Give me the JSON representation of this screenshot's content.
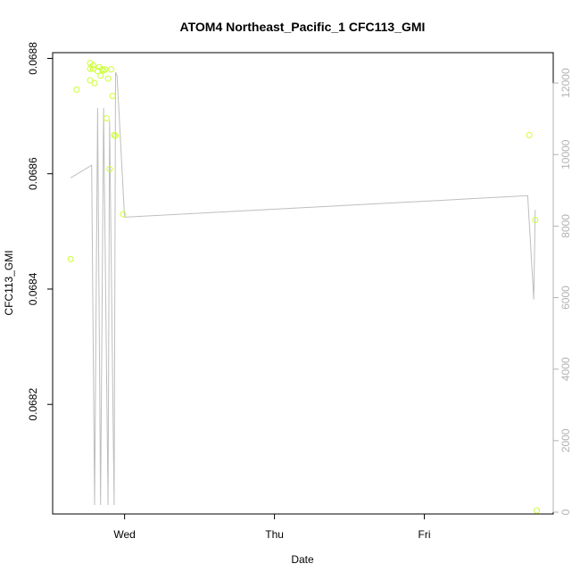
{
  "chart_data": {
    "type": "scatter",
    "title": "ATOM4 Northeast_Pacific_1 CFC113_GMI",
    "xlabel": "Date",
    "ylabel": "CFC113_GMI",
    "x_ticks": [
      {
        "label": "Wed",
        "day": 1.0
      },
      {
        "label": "Thu",
        "day": 2.0
      },
      {
        "label": "Fri",
        "day": 3.0
      }
    ],
    "xlim": [
      0.52,
      3.86
    ],
    "ylim": [
      0.06801,
      0.06881
    ],
    "y_ticks": [
      0.0682,
      0.0684,
      0.0686,
      0.0688
    ],
    "y2lim": [
      -50,
      12850
    ],
    "y2_ticks": [
      0,
      2000,
      4000,
      6000,
      8000,
      10000,
      12000
    ],
    "points_color": "#ccff33",
    "line_color": "#bebebe",
    "right_axis_color": "#b3b3b3",
    "series": [
      {
        "name": "",
        "points": [
          {
            "x": 0.64,
            "y": 0.068452
          },
          {
            "x": 0.68,
            "y": 0.068746
          },
          {
            "x": 0.77,
            "y": 0.068792
          },
          {
            "x": 0.77,
            "y": 0.068782
          },
          {
            "x": 0.77,
            "y": 0.068762
          },
          {
            "x": 0.79,
            "y": 0.068788
          },
          {
            "x": 0.79,
            "y": 0.068782
          },
          {
            "x": 0.8,
            "y": 0.068757
          },
          {
            "x": 0.82,
            "y": 0.068778
          },
          {
            "x": 0.83,
            "y": 0.068785
          },
          {
            "x": 0.84,
            "y": 0.06877
          },
          {
            "x": 0.85,
            "y": 0.068781
          },
          {
            "x": 0.86,
            "y": 0.068779
          },
          {
            "x": 0.87,
            "y": 0.068781
          },
          {
            "x": 0.88,
            "y": 0.068696
          },
          {
            "x": 0.89,
            "y": 0.068765
          },
          {
            "x": 0.9,
            "y": 0.068608
          },
          {
            "x": 0.91,
            "y": 0.068781
          },
          {
            "x": 0.92,
            "y": 0.068735
          },
          {
            "x": 0.93,
            "y": 0.068667
          },
          {
            "x": 0.94,
            "y": 0.068666
          },
          {
            "x": 0.99,
            "y": 0.06853
          },
          {
            "x": 3.7,
            "y": 0.068667
          },
          {
            "x": 3.74,
            "y": 0.06852
          },
          {
            "x": 3.75,
            "y": 0.068016
          }
        ]
      },
      {
        "name": "",
        "axis": "right",
        "line": [
          {
            "x": 0.64,
            "y": 9350
          },
          {
            "x": 0.78,
            "y": 9700
          },
          {
            "x": 0.8,
            "y": 200
          },
          {
            "x": 0.82,
            "y": 11300
          },
          {
            "x": 0.84,
            "y": 200
          },
          {
            "x": 0.86,
            "y": 11300
          },
          {
            "x": 0.89,
            "y": 200
          },
          {
            "x": 0.9,
            "y": 10950
          },
          {
            "x": 0.93,
            "y": 200
          },
          {
            "x": 0.94,
            "y": 12300
          },
          {
            "x": 0.95,
            "y": 12200
          },
          {
            "x": 1.0,
            "y": 8250
          },
          {
            "x": 3.69,
            "y": 8850
          },
          {
            "x": 3.73,
            "y": 5950
          },
          {
            "x": 3.74,
            "y": 8450
          }
        ]
      }
    ]
  }
}
